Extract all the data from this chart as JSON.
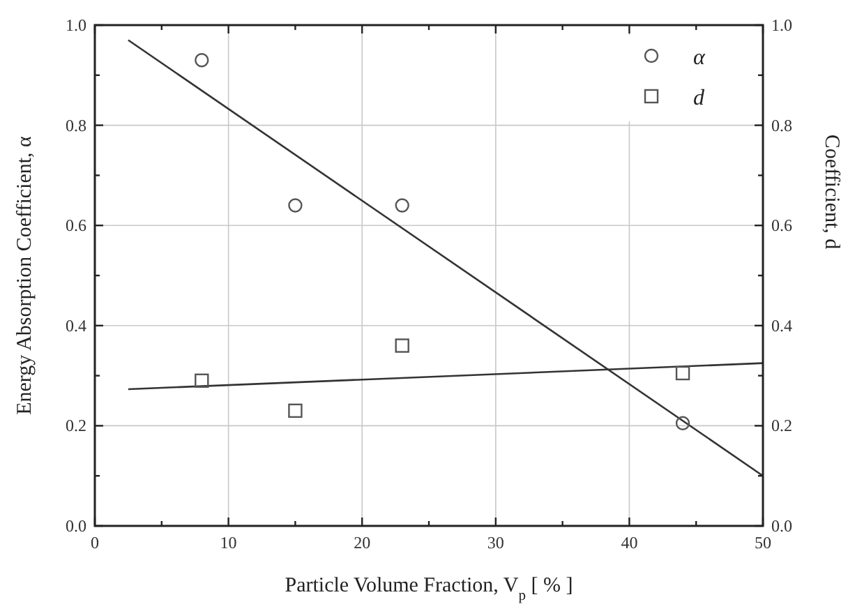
{
  "chart_data": {
    "type": "scatter",
    "xlabel": "Particle Volume Fraction, V$_{p}$  [ % ]",
    "ylabel": "Energy Absorption Coefficient,  α",
    "y2label": "Coefficient,  d",
    "xlim": [
      0,
      50
    ],
    "xticks": [
      0,
      {
        "value": 5,
        "label": null
      },
      10,
      {
        "value": 15,
        "label": null
      },
      20,
      {
        "value": 25,
        "label": null
      },
      30,
      {
        "value": 35,
        "label": null
      },
      40,
      {
        "value": 45,
        "label": null
      },
      50
    ],
    "ylim": [
      0,
      1
    ],
    "yticks": [
      "0.0",
      {
        "value": 0.1,
        "label": null
      },
      0.2,
      {
        "value": 0.3,
        "label": null
      },
      0.4,
      {
        "value": 0.5,
        "label": null
      },
      0.6,
      {
        "value": 0.7,
        "label": null
      },
      0.8,
      {
        "value": 0.9,
        "label": null
      },
      "1.0"
    ],
    "y2lim": [
      0,
      1
    ],
    "y2ticks": [
      "0.0",
      {
        "value": 0.1,
        "label": null
      },
      0.2,
      {
        "value": 0.3,
        "label": null
      },
      0.4,
      {
        "value": 0.5,
        "label": null
      },
      0.6,
      {
        "value": 0.7,
        "label": null
      },
      0.8,
      {
        "value": 0.9,
        "label": null
      },
      "1.0"
    ],
    "grid": true,
    "legend": "top right",
    "series": [
      {
        "name": "α",
        "marker": "circle",
        "color": "#555555",
        "x": [
          8,
          15,
          23,
          44
        ],
        "values": [
          0.93,
          0.64,
          0.64,
          0.205
        ]
      },
      {
        "name": "d",
        "marker": "square",
        "color": "#555555",
        "x": [
          8,
          15,
          23,
          44
        ],
        "values": [
          0.29,
          0.23,
          0.36,
          0.305
        ]
      },
      {
        "type": "line",
        "color": "#333333",
        "x": [
          2.5,
          50
        ],
        "values": [
          0.97,
          0.1
        ]
      },
      {
        "type": "line",
        "color": "#333333",
        "x": [
          2.5,
          50
        ],
        "values": [
          0.273,
          0.325
        ]
      }
    ]
  }
}
